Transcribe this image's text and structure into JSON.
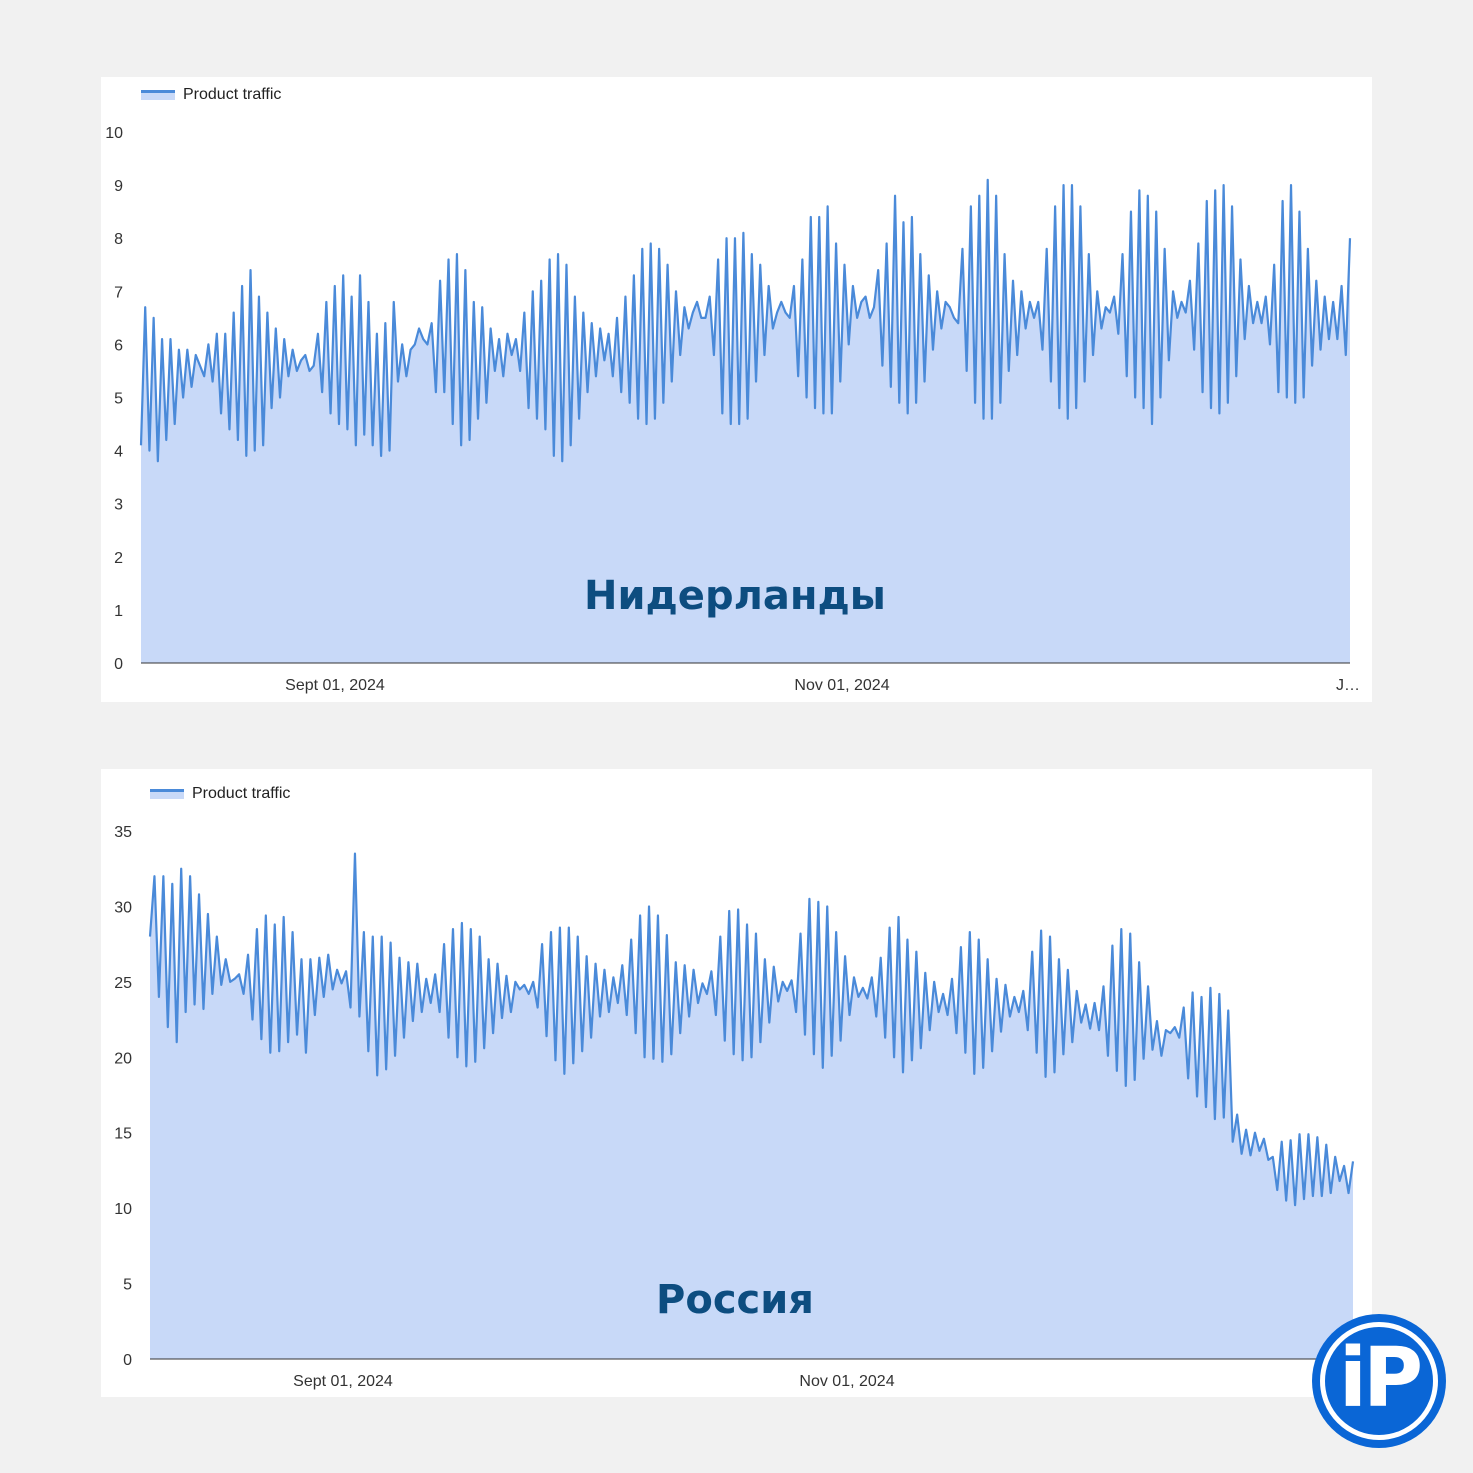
{
  "chart_data": [
    {
      "type": "area",
      "overlay_title": "Нидерланды",
      "legend": [
        "Product traffic"
      ],
      "legend_placement": "top-left",
      "ylim": [
        0,
        10
      ],
      "yticks": [
        0,
        1,
        2,
        3,
        4,
        5,
        6,
        7,
        8,
        9,
        10
      ],
      "xticks": [
        "Sept 01, 2024",
        "Nov 01, 2024",
        "J…"
      ],
      "grid": false,
      "colors": {
        "line": "#4a8ad9",
        "fill": "#c8d9f8"
      },
      "series": [
        {
          "name": "Product traffic",
          "values": [
            4.1,
            6.7,
            4.0,
            6.5,
            3.8,
            6.1,
            4.2,
            6.1,
            4.5,
            5.9,
            5.0,
            5.9,
            5.2,
            5.8,
            5.6,
            5.4,
            6.0,
            5.3,
            6.2,
            4.7,
            6.2,
            4.4,
            6.6,
            4.2,
            7.1,
            3.9,
            7.4,
            4.0,
            6.9,
            4.1,
            6.6,
            4.8,
            6.3,
            5.0,
            6.1,
            5.4,
            5.9,
            5.5,
            5.7,
            5.8,
            5.5,
            5.6,
            6.2,
            5.1,
            6.8,
            4.7,
            7.1,
            4.5,
            7.3,
            4.4,
            6.9,
            4.1,
            7.3,
            4.3,
            6.8,
            4.1,
            6.2,
            3.9,
            6.4,
            4.0,
            6.8,
            5.3,
            6.0,
            5.4,
            5.9,
            6.0,
            6.3,
            6.1,
            6.0,
            6.4,
            5.1,
            7.2,
            5.1,
            7.6,
            4.5,
            7.7,
            4.1,
            7.4,
            4.2,
            6.8,
            4.6,
            6.7,
            4.9,
            6.3,
            5.5,
            6.1,
            5.4,
            6.2,
            5.8,
            6.1,
            5.5,
            6.6,
            4.8,
            7.0,
            4.6,
            7.2,
            4.4,
            7.6,
            3.9,
            7.7,
            3.8,
            7.5,
            4.1,
            6.9,
            4.6,
            6.6,
            5.1,
            6.4,
            5.4,
            6.3,
            5.7,
            6.2,
            5.4,
            6.5,
            5.1,
            6.9,
            4.9,
            7.3,
            4.6,
            7.8,
            4.5,
            7.9,
            4.6,
            7.8,
            4.9,
            7.5,
            5.3,
            7.0,
            5.8,
            6.7,
            6.3,
            6.6,
            6.8,
            6.5,
            6.5,
            6.9,
            5.8,
            7.6,
            4.7,
            8.0,
            4.5,
            8.0,
            4.5,
            8.1,
            4.6,
            7.7,
            5.3,
            7.5,
            5.8,
            7.1,
            6.3,
            6.6,
            6.8,
            6.6,
            6.5,
            7.1,
            5.4,
            7.6,
            5.0,
            8.4,
            4.8,
            8.4,
            4.7,
            8.6,
            4.7,
            7.9,
            5.3,
            7.5,
            6.0,
            7.1,
            6.5,
            6.8,
            6.9,
            6.5,
            6.7,
            7.4,
            5.6,
            7.9,
            5.2,
            8.8,
            4.9,
            8.3,
            4.7,
            8.4,
            4.9,
            7.7,
            5.3,
            7.3,
            5.9,
            7.0,
            6.3,
            6.8,
            6.7,
            6.5,
            6.4,
            7.8,
            5.5,
            8.6,
            4.9,
            8.8,
            4.6,
            9.1,
            4.6,
            8.8,
            4.9,
            7.7,
            5.5,
            7.2,
            5.8,
            7.0,
            6.3,
            6.8,
            6.5,
            6.8,
            5.9,
            7.8,
            5.3,
            8.6,
            4.8,
            9.0,
            4.6,
            9.0,
            4.8,
            8.6,
            5.3,
            7.7,
            5.8,
            7.0,
            6.3,
            6.7,
            6.6,
            6.9,
            6.2,
            7.7,
            5.4,
            8.5,
            5.0,
            8.9,
            4.8,
            8.8,
            4.5,
            8.5,
            5.0,
            7.8,
            5.7,
            7.0,
            6.5,
            6.8,
            6.6,
            7.2,
            5.9,
            7.9,
            5.1,
            8.7,
            4.8,
            8.9,
            4.7,
            9.0,
            4.9,
            8.6,
            5.4,
            7.6,
            6.1,
            7.1,
            6.4,
            6.8,
            6.4,
            6.9,
            6.0,
            7.5,
            5.1,
            8.7,
            5.0,
            9.0,
            4.9,
            8.5,
            5.0,
            7.8,
            5.6,
            7.2,
            5.9,
            6.9,
            6.1,
            6.8,
            6.1,
            7.1,
            5.8,
            8.0
          ]
        }
      ]
    },
    {
      "type": "area",
      "overlay_title": "Россия",
      "legend": [
        "Product traffic"
      ],
      "legend_placement": "top-left",
      "ylim": [
        0,
        35
      ],
      "yticks": [
        0,
        5,
        10,
        15,
        20,
        25,
        30,
        35
      ],
      "xticks": [
        "Sept 01, 2024",
        "Nov 01, 2024"
      ],
      "grid": false,
      "colors": {
        "line": "#4a8ad9",
        "fill": "#c8d9f8"
      },
      "series": [
        {
          "name": "Product traffic",
          "values": [
            28.0,
            32.0,
            24.0,
            32.0,
            22.0,
            31.5,
            21.0,
            32.5,
            23.0,
            32.0,
            23.5,
            30.8,
            23.2,
            29.5,
            24.2,
            28.0,
            24.8,
            26.5,
            25.0,
            25.2,
            25.5,
            24.2,
            26.8,
            22.5,
            28.5,
            21.2,
            29.4,
            20.3,
            28.8,
            20.4,
            29.3,
            21.0,
            28.3,
            21.5,
            26.5,
            20.3,
            26.5,
            22.8,
            26.6,
            24.0,
            26.8,
            24.5,
            25.8,
            24.9,
            25.7,
            23.3,
            33.5,
            22.7,
            28.3,
            20.4,
            28.0,
            18.8,
            28.0,
            19.2,
            27.6,
            20.1,
            26.6,
            21.3,
            26.3,
            22.4,
            26.2,
            23.0,
            25.2,
            23.6,
            25.5,
            23.0,
            27.5,
            21.3,
            28.5,
            20.0,
            28.9,
            19.4,
            28.5,
            19.7,
            28.0,
            20.6,
            26.5,
            21.6,
            26.2,
            22.6,
            25.4,
            23.0,
            25.0,
            24.5,
            24.8,
            24.2,
            25.0,
            23.3,
            27.5,
            21.4,
            28.3,
            19.8,
            28.6,
            18.9,
            28.6,
            19.6,
            28.0,
            20.4,
            26.7,
            21.3,
            26.2,
            22.7,
            25.8,
            23.0,
            25.3,
            23.6,
            26.1,
            22.8,
            27.8,
            21.6,
            29.4,
            20.0,
            30.0,
            19.9,
            29.4,
            19.7,
            28.1,
            20.2,
            26.3,
            21.6,
            26.1,
            22.7,
            25.8,
            23.6,
            24.9,
            24.2,
            25.7,
            22.8,
            28.0,
            21.1,
            29.7,
            20.2,
            29.8,
            19.8,
            28.8,
            20.0,
            28.2,
            21.0,
            26.5,
            22.3,
            26.0,
            23.7,
            25.0,
            24.4,
            25.1,
            23.0,
            28.2,
            21.5,
            30.5,
            20.2,
            30.3,
            19.3,
            30.0,
            20.1,
            28.3,
            21.1,
            26.7,
            22.8,
            25.3,
            24.0,
            24.6,
            23.9,
            25.3,
            22.7,
            26.6,
            21.3,
            28.6,
            20.0,
            29.3,
            19.0,
            27.8,
            19.8,
            27.0,
            20.6,
            25.6,
            21.8,
            25.0,
            23.0,
            24.2,
            22.8,
            25.2,
            21.6,
            27.3,
            20.3,
            28.3,
            18.9,
            27.8,
            19.3,
            26.5,
            20.4,
            25.2,
            21.7,
            24.8,
            22.7,
            24.0,
            23.0,
            24.4,
            21.8,
            27.0,
            20.3,
            28.4,
            18.7,
            28.0,
            19.0,
            26.5,
            20.2,
            25.8,
            21.0,
            24.4,
            22.3,
            23.5,
            21.9,
            23.6,
            21.8,
            24.7,
            20.1,
            27.4,
            19.1,
            28.5,
            18.1,
            28.2,
            18.5,
            26.3,
            19.9,
            24.7,
            20.5,
            22.4,
            20.1,
            21.8,
            21.6,
            22.0,
            21.3,
            23.3,
            18.6,
            24.3,
            17.4,
            24.0,
            16.7,
            24.6,
            15.9,
            24.2,
            16.0,
            23.1,
            14.4,
            16.2,
            13.6,
            15.2,
            13.5,
            15.0,
            13.8,
            14.6,
            13.2,
            13.4,
            11.2,
            14.4,
            10.5,
            14.5,
            10.2,
            14.9,
            10.6,
            14.9,
            10.8,
            14.7,
            10.8,
            14.2,
            11.0,
            13.4,
            11.8,
            12.8,
            11.0,
            13.1
          ]
        }
      ]
    }
  ],
  "logo": {
    "text": "iP",
    "color": "#0a66d6"
  }
}
